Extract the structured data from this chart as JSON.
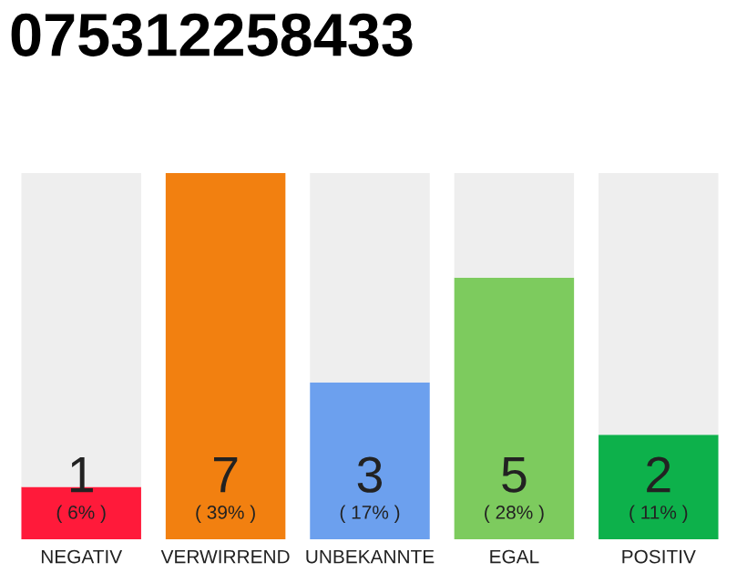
{
  "chart_data": {
    "type": "bar",
    "title": "075312258433",
    "stacked": true,
    "categories": [
      "NEGATIV",
      "VERWIRREND",
      "UNBEKANNTE",
      "EGAL",
      "POSITIV"
    ],
    "series": [
      {
        "colors": [
          "#ff1a3a",
          "#f28010",
          "#6ca0ee",
          "#7dcb5e",
          "#0db14b"
        ],
        "values": [
          1,
          7,
          3,
          5,
          2
        ],
        "value_labels": [
          "1",
          "7",
          "3",
          "5",
          "2"
        ]
      },
      {
        "color": "#eeeeee",
        "values": [
          6,
          0,
          4,
          2,
          5
        ]
      }
    ],
    "annotations": [
      {
        "text": "( 6% )",
        "x": "NEGATIV",
        "y": 0
      },
      {
        "text": "( 39% )",
        "x": "VERWIRREND",
        "y": 0
      },
      {
        "text": "( 17% )",
        "x": "UNBEKANNTE",
        "y": 0
      },
      {
        "text": "( 28% )",
        "x": "EGAL",
        "y": 0
      },
      {
        "text": "( 11% )",
        "x": "POSITIV",
        "y": 0
      }
    ],
    "grid": false,
    "legend": false
  }
}
